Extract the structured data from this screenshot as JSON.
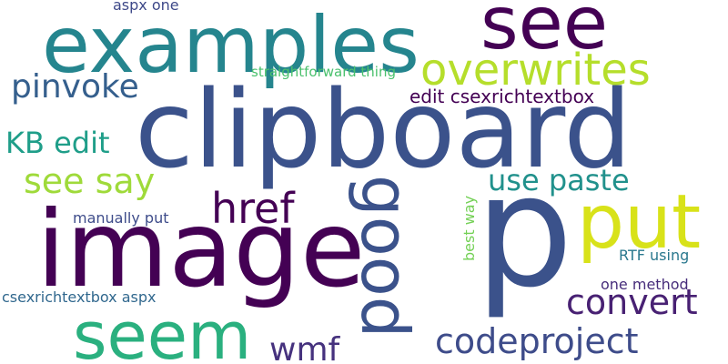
{
  "wordcloud": {
    "background": "#ffffff",
    "words": [
      {
        "text": "clipboard",
        "color": "#3b528b"
      },
      {
        "text": "p",
        "color": "#3b528b"
      },
      {
        "text": "image",
        "color": "#440154"
      },
      {
        "text": "examples",
        "color": "#25858e"
      },
      {
        "text": "see",
        "color": "#440154"
      },
      {
        "text": "put",
        "color": "#d8e219"
      },
      {
        "text": "seem",
        "color": "#2ab07f"
      },
      {
        "text": "overwrites",
        "color": "#b5de2b"
      },
      {
        "text": "good",
        "color": "#3b528b"
      },
      {
        "text": "href",
        "color": "#440154"
      },
      {
        "text": "codeproject",
        "color": "#3e4c8a"
      },
      {
        "text": "convert",
        "color": "#482173"
      },
      {
        "text": "pinvoke",
        "color": "#355f8d"
      },
      {
        "text": "see say",
        "color": "#9fda3a"
      },
      {
        "text": "KB edit",
        "color": "#1f9e89"
      },
      {
        "text": "use paste",
        "color": "#21918c"
      },
      {
        "text": "wmf",
        "color": "#46327e"
      },
      {
        "text": "edit csexrichtextbox",
        "color": "#440154"
      },
      {
        "text": "straightforward thing",
        "color": "#4ac16d"
      },
      {
        "text": "aspx one",
        "color": "#3e4989"
      },
      {
        "text": "manually put",
        "color": "#3e4c8a"
      },
      {
        "text": "best way",
        "color": "#73d055"
      },
      {
        "text": "RTF using",
        "color": "#2a788e"
      },
      {
        "text": "one method",
        "color": "#472d7b"
      },
      {
        "text": "csexrichtextbox aspx",
        "color": "#31688e"
      }
    ]
  }
}
